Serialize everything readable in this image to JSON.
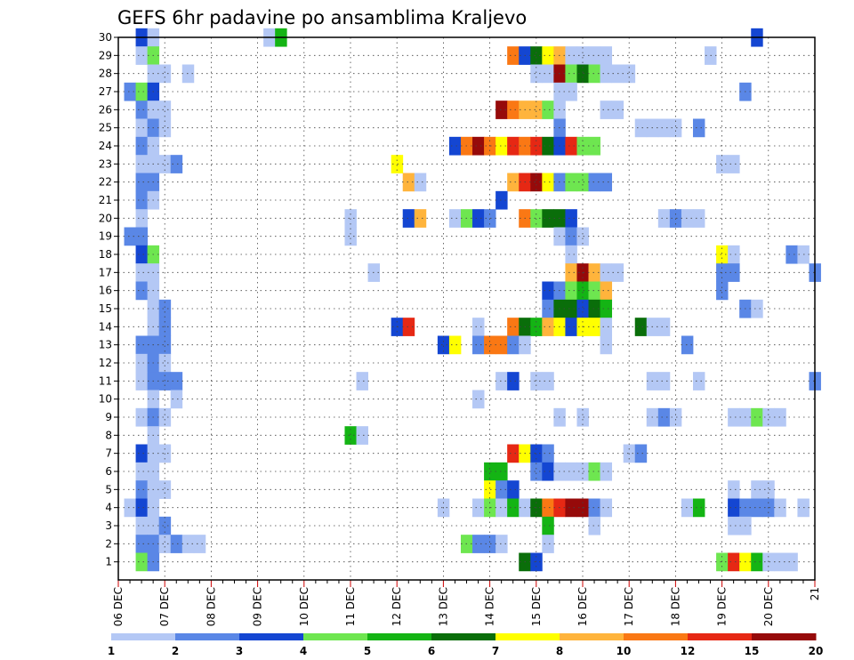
{
  "chart_data": {
    "type": "heatmap",
    "title": "GEFS 6hr padavine po ansamblima Kraljevo",
    "xlabel": "",
    "ylabel": "",
    "x_tick_labels": [
      "06 DEC",
      "07 DEC",
      "08 DEC",
      "09 DEC",
      "10 DEC",
      "11 DEC",
      "12 DEC",
      "13 DEC",
      "14 DEC",
      "15 DEC",
      "16 DEC",
      "17 DEC",
      "18 DEC",
      "19 DEC",
      "20 DEC",
      "21"
    ],
    "y_tick_labels": [
      "1",
      "2",
      "3",
      "4",
      "5",
      "6",
      "7",
      "8",
      "9",
      "10",
      "11",
      "12",
      "13",
      "14",
      "15",
      "16",
      "17",
      "18",
      "19",
      "20",
      "21",
      "22",
      "23",
      "24",
      "25",
      "26",
      "27",
      "28",
      "29",
      "30"
    ],
    "xlim_steps": [
      0,
      60
    ],
    "ylim": [
      0,
      30
    ],
    "grid": true,
    "colorbar": {
      "boundaries": [
        "1",
        "2",
        "3",
        "4",
        "5",
        "6",
        "7",
        "8",
        "10",
        "12",
        "15",
        "20"
      ],
      "colors": [
        "#b4c8f5",
        "#5a87e6",
        "#1446d2",
        "#6ee650",
        "#14b414",
        "#0a6e0a",
        "#ffff00",
        "#ffb43c",
        "#fa7814",
        "#e62814",
        "#960a0a"
      ]
    },
    "cells": [
      [
        30,
        [
          [
            2,
            2
          ],
          [
            3,
            0
          ],
          [
            13,
            0
          ],
          [
            14,
            4
          ],
          [
            55,
            2
          ]
        ]
      ],
      [
        29,
        [
          [
            2,
            0
          ],
          [
            3,
            3
          ],
          [
            34,
            8
          ],
          [
            35,
            2
          ],
          [
            36,
            5
          ],
          [
            37,
            6
          ],
          [
            38,
            7
          ],
          [
            39,
            0
          ],
          [
            40,
            0
          ],
          [
            41,
            0
          ],
          [
            42,
            0
          ],
          [
            51,
            0
          ]
        ]
      ],
      [
        28,
        [
          [
            3,
            0
          ],
          [
            4,
            0
          ],
          [
            6,
            0
          ],
          [
            36,
            0
          ],
          [
            37,
            0
          ],
          [
            38,
            10
          ],
          [
            39,
            3
          ],
          [
            40,
            5
          ],
          [
            41,
            3
          ],
          [
            42,
            0
          ],
          [
            43,
            0
          ],
          [
            44,
            0
          ]
        ]
      ],
      [
        27,
        [
          [
            1,
            1
          ],
          [
            2,
            3
          ],
          [
            3,
            2
          ],
          [
            38,
            0
          ],
          [
            39,
            0
          ],
          [
            54,
            1
          ]
        ]
      ],
      [
        26,
        [
          [
            2,
            1
          ],
          [
            3,
            0
          ],
          [
            4,
            0
          ],
          [
            33,
            10
          ],
          [
            34,
            8
          ],
          [
            35,
            7
          ],
          [
            36,
            7
          ],
          [
            37,
            3
          ],
          [
            38,
            0
          ],
          [
            42,
            0
          ],
          [
            43,
            0
          ]
        ]
      ],
      [
        25,
        [
          [
            2,
            0
          ],
          [
            3,
            1
          ],
          [
            4,
            0
          ],
          [
            38,
            1
          ],
          [
            45,
            0
          ],
          [
            46,
            0
          ],
          [
            47,
            0
          ],
          [
            48,
            0
          ],
          [
            50,
            1
          ]
        ]
      ],
      [
        24,
        [
          [
            2,
            1
          ],
          [
            3,
            0
          ],
          [
            29,
            2
          ],
          [
            30,
            8
          ],
          [
            31,
            10
          ],
          [
            32,
            8
          ],
          [
            33,
            6
          ],
          [
            34,
            9
          ],
          [
            35,
            8
          ],
          [
            36,
            9
          ],
          [
            37,
            5
          ],
          [
            38,
            2
          ],
          [
            39,
            9
          ],
          [
            40,
            3
          ],
          [
            41,
            3
          ]
        ]
      ],
      [
        23,
        [
          [
            2,
            0
          ],
          [
            3,
            0
          ],
          [
            4,
            0
          ],
          [
            5,
            1
          ],
          [
            24,
            6
          ],
          [
            52,
            0
          ],
          [
            53,
            0
          ]
        ]
      ],
      [
        22,
        [
          [
            2,
            1
          ],
          [
            3,
            1
          ],
          [
            25,
            7
          ],
          [
            26,
            0
          ],
          [
            34,
            7
          ],
          [
            35,
            9
          ],
          [
            36,
            10
          ],
          [
            37,
            6
          ],
          [
            38,
            1
          ],
          [
            39,
            3
          ],
          [
            40,
            3
          ],
          [
            41,
            1
          ],
          [
            42,
            1
          ]
        ]
      ],
      [
        21,
        [
          [
            2,
            1
          ],
          [
            3,
            0
          ],
          [
            33,
            2
          ]
        ]
      ],
      [
        20,
        [
          [
            2,
            0
          ],
          [
            20,
            0
          ],
          [
            25,
            2
          ],
          [
            26,
            7
          ],
          [
            29,
            0
          ],
          [
            30,
            3
          ],
          [
            31,
            2
          ],
          [
            32,
            1
          ],
          [
            35,
            8
          ],
          [
            36,
            3
          ],
          [
            37,
            5
          ],
          [
            38,
            5
          ],
          [
            39,
            2
          ],
          [
            47,
            0
          ],
          [
            48,
            1
          ],
          [
            49,
            0
          ],
          [
            50,
            0
          ]
        ]
      ],
      [
        19,
        [
          [
            1,
            1
          ],
          [
            2,
            1
          ],
          [
            20,
            0
          ],
          [
            38,
            0
          ],
          [
            39,
            1
          ],
          [
            40,
            0
          ]
        ]
      ],
      [
        18,
        [
          [
            2,
            2
          ],
          [
            3,
            3
          ],
          [
            39,
            0
          ],
          [
            52,
            6
          ],
          [
            53,
            0
          ],
          [
            58,
            1
          ],
          [
            59,
            0
          ]
        ]
      ],
      [
        17,
        [
          [
            2,
            0
          ],
          [
            3,
            0
          ],
          [
            22,
            0
          ],
          [
            39,
            7
          ],
          [
            40,
            10
          ],
          [
            41,
            7
          ],
          [
            42,
            0
          ],
          [
            43,
            0
          ],
          [
            52,
            1
          ],
          [
            53,
            1
          ],
          [
            60,
            1
          ]
        ]
      ],
      [
        16,
        [
          [
            2,
            1
          ],
          [
            3,
            0
          ],
          [
            37,
            2
          ],
          [
            38,
            1
          ],
          [
            39,
            3
          ],
          [
            40,
            4
          ],
          [
            41,
            3
          ],
          [
            42,
            7
          ],
          [
            52,
            1
          ]
        ]
      ],
      [
        15,
        [
          [
            3,
            0
          ],
          [
            4,
            1
          ],
          [
            37,
            1
          ],
          [
            38,
            5
          ],
          [
            39,
            5
          ],
          [
            40,
            2
          ],
          [
            41,
            5
          ],
          [
            42,
            4
          ],
          [
            54,
            1
          ],
          [
            55,
            0
          ]
        ]
      ],
      [
        14,
        [
          [
            3,
            0
          ],
          [
            4,
            1
          ],
          [
            24,
            2
          ],
          [
            25,
            9
          ],
          [
            31,
            0
          ],
          [
            34,
            8
          ],
          [
            35,
            5
          ],
          [
            36,
            4
          ],
          [
            37,
            7
          ],
          [
            38,
            6
          ],
          [
            39,
            2
          ],
          [
            40,
            6
          ],
          [
            41,
            6
          ],
          [
            42,
            0
          ],
          [
            45,
            5
          ],
          [
            46,
            0
          ],
          [
            47,
            0
          ]
        ]
      ],
      [
        13,
        [
          [
            2,
            1
          ],
          [
            3,
            1
          ],
          [
            4,
            1
          ],
          [
            28,
            2
          ],
          [
            29,
            6
          ],
          [
            31,
            1
          ],
          [
            32,
            8
          ],
          [
            33,
            8
          ],
          [
            34,
            1
          ],
          [
            35,
            0
          ],
          [
            42,
            0
          ],
          [
            49,
            1
          ]
        ]
      ],
      [
        12,
        [
          [
            2,
            0
          ],
          [
            3,
            1
          ],
          [
            4,
            0
          ]
        ]
      ],
      [
        11,
        [
          [
            2,
            0
          ],
          [
            3,
            1
          ],
          [
            4,
            1
          ],
          [
            5,
            1
          ],
          [
            21,
            0
          ],
          [
            33,
            0
          ],
          [
            34,
            2
          ],
          [
            36,
            0
          ],
          [
            37,
            0
          ],
          [
            46,
            0
          ],
          [
            47,
            0
          ],
          [
            50,
            0
          ],
          [
            60,
            1
          ]
        ]
      ],
      [
        10,
        [
          [
            3,
            0
          ],
          [
            5,
            0
          ],
          [
            31,
            0
          ]
        ]
      ],
      [
        9,
        [
          [
            2,
            0
          ],
          [
            3,
            1
          ],
          [
            4,
            0
          ],
          [
            38,
            0
          ],
          [
            40,
            0
          ],
          [
            46,
            0
          ],
          [
            47,
            1
          ],
          [
            48,
            0
          ],
          [
            53,
            0
          ],
          [
            54,
            0
          ],
          [
            55,
            3
          ],
          [
            56,
            0
          ],
          [
            57,
            0
          ]
        ]
      ],
      [
        8,
        [
          [
            3,
            0
          ],
          [
            20,
            4
          ],
          [
            21,
            0
          ]
        ]
      ],
      [
        7,
        [
          [
            2,
            2
          ],
          [
            3,
            0
          ],
          [
            4,
            0
          ],
          [
            34,
            9
          ],
          [
            35,
            6
          ],
          [
            36,
            2
          ],
          [
            37,
            1
          ],
          [
            44,
            0
          ],
          [
            45,
            1
          ]
        ]
      ],
      [
        6,
        [
          [
            2,
            0
          ],
          [
            3,
            0
          ],
          [
            32,
            4
          ],
          [
            33,
            4
          ],
          [
            36,
            1
          ],
          [
            37,
            2
          ],
          [
            38,
            0
          ],
          [
            39,
            0
          ],
          [
            40,
            0
          ],
          [
            41,
            3
          ],
          [
            42,
            0
          ]
        ]
      ],
      [
        5,
        [
          [
            2,
            1
          ],
          [
            3,
            0
          ],
          [
            4,
            0
          ],
          [
            32,
            6
          ],
          [
            33,
            1
          ],
          [
            34,
            2
          ],
          [
            53,
            0
          ],
          [
            55,
            0
          ],
          [
            56,
            0
          ]
        ]
      ],
      [
        4,
        [
          [
            1,
            0
          ],
          [
            2,
            2
          ],
          [
            3,
            0
          ],
          [
            28,
            0
          ],
          [
            31,
            0
          ],
          [
            32,
            3
          ],
          [
            33,
            0
          ],
          [
            34,
            4
          ],
          [
            35,
            0
          ],
          [
            36,
            5
          ],
          [
            37,
            8
          ],
          [
            38,
            9
          ],
          [
            39,
            10
          ],
          [
            40,
            10
          ],
          [
            41,
            1
          ],
          [
            42,
            0
          ],
          [
            49,
            0
          ],
          [
            50,
            4
          ],
          [
            53,
            2
          ],
          [
            54,
            1
          ],
          [
            55,
            1
          ],
          [
            56,
            1
          ],
          [
            57,
            0
          ],
          [
            59,
            0
          ]
        ]
      ],
      [
        3,
        [
          [
            2,
            0
          ],
          [
            3,
            0
          ],
          [
            4,
            1
          ],
          [
            37,
            4
          ],
          [
            41,
            0
          ],
          [
            53,
            0
          ],
          [
            54,
            0
          ]
        ]
      ],
      [
        2,
        [
          [
            2,
            1
          ],
          [
            3,
            1
          ],
          [
            4,
            0
          ],
          [
            5,
            1
          ],
          [
            6,
            0
          ],
          [
            7,
            0
          ],
          [
            30,
            3
          ],
          [
            31,
            1
          ],
          [
            32,
            1
          ],
          [
            33,
            0
          ],
          [
            37,
            0
          ]
        ]
      ],
      [
        1,
        [
          [
            2,
            3
          ],
          [
            3,
            1
          ],
          [
            35,
            5
          ],
          [
            36,
            2
          ],
          [
            52,
            3
          ],
          [
            53,
            9
          ],
          [
            54,
            6
          ],
          [
            55,
            4
          ],
          [
            56,
            0
          ],
          [
            57,
            0
          ],
          [
            58,
            0
          ]
        ]
      ]
    ]
  }
}
